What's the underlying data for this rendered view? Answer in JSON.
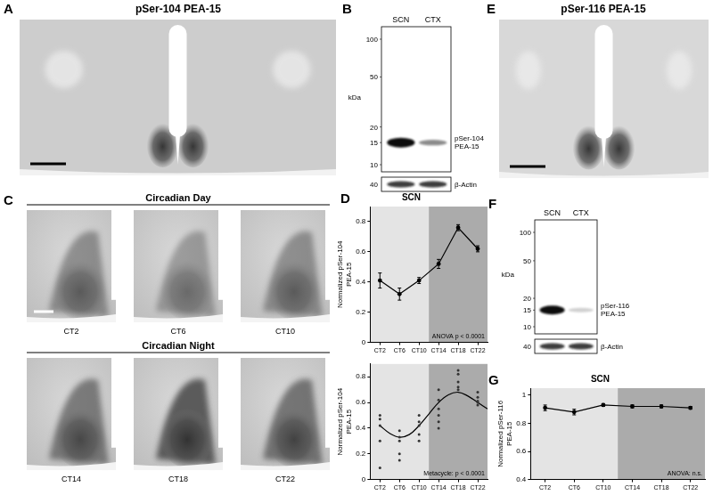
{
  "figure": {
    "panels": [
      {
        "letter": "A",
        "kind": "micrograph",
        "title": "pSer-104 PEA-15"
      },
      {
        "letter": "B",
        "kind": "western_blot",
        "lanes": [
          "SCN",
          "CTX"
        ],
        "axis_label": "kDa",
        "markers": [
          100,
          50,
          20,
          15,
          10
        ],
        "band": {
          "label": "pSer-104 PEA-15",
          "kda": 15
        },
        "loading": {
          "label": "β-Actin",
          "kda": 40
        }
      },
      {
        "letter": "C",
        "kind": "micrograph_grid",
        "rows": [
          {
            "title": "Circadian Day",
            "labels": [
              "CT2",
              "CT6",
              "CT10"
            ]
          },
          {
            "title": "Circadian Night",
            "labels": [
              "CT14",
              "CT18",
              "CT22"
            ]
          }
        ]
      },
      {
        "letter": "E",
        "kind": "micrograph",
        "title": "pSer-116 PEA-15"
      },
      {
        "letter": "F",
        "kind": "western_blot",
        "lanes": [
          "SCN",
          "CTX"
        ],
        "axis_label": "kDa",
        "markers": [
          100,
          50,
          20,
          15,
          10
        ],
        "band": {
          "label": "pSer-116 PEA-15",
          "kda": 15
        },
        "loading": {
          "label": "β-Actin",
          "kda": 40
        }
      }
    ]
  },
  "chart_data": [
    {
      "panel": "D",
      "type": "line",
      "title": "SCN",
      "y_label": [
        "Normalized pSer-104",
        "PEA-15"
      ],
      "annotation": "ANOVA p < 0.0001",
      "xlim": [
        0,
        24
      ],
      "xticks": [
        {
          "value": 2,
          "label": "CT2"
        },
        {
          "value": 6,
          "label": "CT6"
        },
        {
          "value": 10,
          "label": "CT10"
        },
        {
          "value": 14,
          "label": "CT14"
        },
        {
          "value": 18,
          "label": "CT18"
        },
        {
          "value": 22,
          "label": "CT22"
        }
      ],
      "ylim": [
        0,
        0.9
      ],
      "yticks": [
        0,
        0.2,
        0.4,
        0.6,
        0.8
      ],
      "grid": false,
      "bands": [
        {
          "from": 0,
          "to": 12,
          "color": "#e4e4e4"
        },
        {
          "from": 12,
          "to": 24,
          "color": "#ababab"
        }
      ],
      "series": [
        {
          "type": "line",
          "marker": "circle",
          "line_style": "solid",
          "color": "#000000",
          "x": [
            2,
            6,
            10,
            14,
            18,
            22
          ],
          "values": [
            0.41,
            0.32,
            0.41,
            0.52,
            0.76,
            0.62
          ],
          "errors": [
            0.05,
            0.04,
            0.02,
            0.03,
            0.02,
            0.02
          ]
        }
      ]
    },
    {
      "panel": "",
      "type": "scatter",
      "y_label": [
        "Normalized pSer-104",
        "PEA-15"
      ],
      "annotation": "Metacycle: p < 0.0001",
      "xlim": [
        0,
        24
      ],
      "xticks": [
        {
          "value": 2,
          "label": "CT2"
        },
        {
          "value": 6,
          "label": "CT6"
        },
        {
          "value": 10,
          "label": "CT10"
        },
        {
          "value": 14,
          "label": "CT14"
        },
        {
          "value": 18,
          "label": "CT18"
        },
        {
          "value": 22,
          "label": "CT22"
        }
      ],
      "ylim": [
        0,
        0.9
      ],
      "yticks": [
        0,
        0.2,
        0.4,
        0.6,
        0.8
      ],
      "grid": false,
      "bands": [
        {
          "from": 0,
          "to": 12,
          "color": "#e4e4e4"
        },
        {
          "from": 12,
          "to": 24,
          "color": "#ababab"
        }
      ],
      "series": [
        {
          "type": "scatter",
          "marker": "circle",
          "color": "#333333",
          "x": [
            2,
            2,
            2,
            2,
            2,
            6,
            6,
            6,
            6,
            6,
            10,
            10,
            10,
            10,
            10,
            14,
            14,
            14,
            14,
            14,
            14,
            18,
            18,
            18,
            18,
            18,
            22,
            22,
            22,
            22,
            22
          ],
          "values": [
            0.5,
            0.47,
            0.42,
            0.3,
            0.09,
            0.38,
            0.33,
            0.3,
            0.2,
            0.15,
            0.5,
            0.45,
            0.42,
            0.35,
            0.3,
            0.7,
            0.62,
            0.55,
            0.5,
            0.45,
            0.4,
            0.85,
            0.82,
            0.76,
            0.72,
            0.7,
            0.68,
            0.64,
            0.61,
            0.6,
            0.58
          ]
        },
        {
          "type": "line",
          "marker": "none",
          "line_style": "solid",
          "color": "#000000",
          "x": [
            2,
            4,
            6,
            8,
            10,
            12,
            14,
            16,
            18,
            20,
            22,
            24
          ],
          "values": [
            0.42,
            0.36,
            0.33,
            0.35,
            0.42,
            0.51,
            0.6,
            0.66,
            0.68,
            0.65,
            0.6,
            0.55
          ]
        }
      ]
    },
    {
      "panel": "G",
      "type": "line",
      "title": "SCN",
      "y_label": [
        "Normalized pSer-116",
        "PEA-15"
      ],
      "annotation": "ANOVA: n.s.",
      "xlim": [
        0,
        24
      ],
      "xticks": [
        {
          "value": 2,
          "label": "CT2"
        },
        {
          "value": 6,
          "label": "CT6"
        },
        {
          "value": 10,
          "label": "CT10"
        },
        {
          "value": 14,
          "label": "CT14"
        },
        {
          "value": 18,
          "label": "CT18"
        },
        {
          "value": 22,
          "label": "CT22"
        }
      ],
      "ylim": [
        0.4,
        1.05
      ],
      "yticks": [
        0.4,
        0.6,
        0.8,
        1
      ],
      "grid": false,
      "bands": [
        {
          "from": 0,
          "to": 12,
          "color": "#e4e4e4"
        },
        {
          "from": 12,
          "to": 24,
          "color": "#ababab"
        }
      ],
      "series": [
        {
          "type": "line",
          "marker": "circle",
          "line_style": "solid",
          "color": "#000000",
          "x": [
            2,
            6,
            10,
            14,
            18,
            22
          ],
          "values": [
            0.91,
            0.88,
            0.93,
            0.92,
            0.92,
            0.91
          ],
          "errors": [
            0.02,
            0.02,
            0.01,
            0.01,
            0.01,
            0.01
          ]
        }
      ]
    }
  ]
}
